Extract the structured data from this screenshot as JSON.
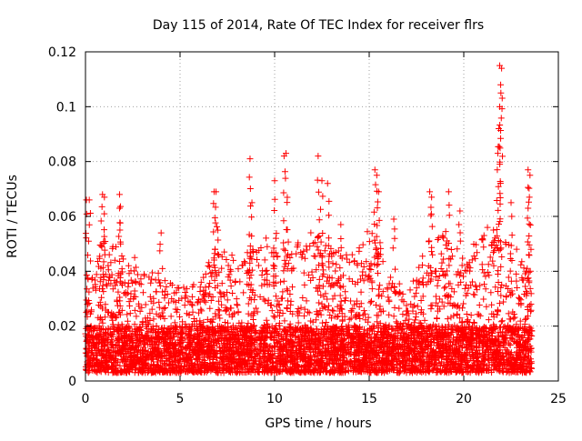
{
  "chart_data": {
    "type": "scatter",
    "title": "Day 115 of 2014, Rate Of TEC Index for receiver flrs",
    "xlabel": "GPS time / hours",
    "ylabel": "ROTI / TECUs",
    "xlim": [
      0,
      25
    ],
    "ylim": [
      0,
      0.12
    ],
    "xticks": [
      0,
      5,
      10,
      15,
      20,
      25
    ],
    "yticks": [
      0,
      0.02,
      0.04,
      0.06,
      0.08,
      0.1,
      0.12
    ],
    "xtick_labels": [
      "0",
      "5",
      "10",
      "15",
      "20",
      "25"
    ],
    "ytick_labels": [
      "0",
      "0.02",
      "0.04",
      "0.06",
      "0.08",
      "0.1",
      "0.12"
    ],
    "grid": true,
    "marker": "+",
    "marker_color": "#ff0000",
    "series": [
      {
        "name": "ROTI",
        "peaks": [
          {
            "x": 0.05,
            "y": 0.066
          },
          {
            "x": 0.2,
            "y": 0.066
          },
          {
            "x": 0.9,
            "y": 0.068
          },
          {
            "x": 1.0,
            "y": 0.067
          },
          {
            "x": 1.8,
            "y": 0.068
          },
          {
            "x": 1.8,
            "y": 0.063
          },
          {
            "x": 2.6,
            "y": 0.045
          },
          {
            "x": 4.0,
            "y": 0.054
          },
          {
            "x": 6.8,
            "y": 0.069
          },
          {
            "x": 6.9,
            "y": 0.069
          },
          {
            "x": 7.0,
            "y": 0.055
          },
          {
            "x": 8.7,
            "y": 0.081
          },
          {
            "x": 8.8,
            "y": 0.065
          },
          {
            "x": 10.0,
            "y": 0.073
          },
          {
            "x": 10.5,
            "y": 0.082
          },
          {
            "x": 10.6,
            "y": 0.083
          },
          {
            "x": 12.3,
            "y": 0.082
          },
          {
            "x": 12.5,
            "y": 0.073
          },
          {
            "x": 12.8,
            "y": 0.072
          },
          {
            "x": 13.5,
            "y": 0.057
          },
          {
            "x": 15.3,
            "y": 0.077
          },
          {
            "x": 15.4,
            "y": 0.075
          },
          {
            "x": 15.5,
            "y": 0.069
          },
          {
            "x": 16.3,
            "y": 0.059
          },
          {
            "x": 18.2,
            "y": 0.069
          },
          {
            "x": 18.3,
            "y": 0.067
          },
          {
            "x": 19.2,
            "y": 0.069
          },
          {
            "x": 19.8,
            "y": 0.062
          },
          {
            "x": 21.9,
            "y": 0.115
          },
          {
            "x": 22.0,
            "y": 0.114
          },
          {
            "x": 21.95,
            "y": 0.108
          },
          {
            "x": 21.9,
            "y": 0.1
          },
          {
            "x": 21.85,
            "y": 0.092
          },
          {
            "x": 21.8,
            "y": 0.083
          },
          {
            "x": 22.5,
            "y": 0.065
          },
          {
            "x": 23.4,
            "y": 0.077
          },
          {
            "x": 23.5,
            "y": 0.075
          },
          {
            "x": 23.4,
            "y": 0.063
          }
        ],
        "envelope_hours": [
          0,
          1,
          2,
          3,
          4,
          5,
          6,
          7,
          8,
          9,
          10,
          11,
          12,
          13,
          14,
          15,
          16,
          17,
          18,
          19,
          20,
          21,
          22,
          23,
          23.6
        ],
        "envelope_upper": [
          0.036,
          0.055,
          0.045,
          0.04,
          0.04,
          0.034,
          0.036,
          0.052,
          0.045,
          0.052,
          0.055,
          0.05,
          0.055,
          0.05,
          0.045,
          0.058,
          0.045,
          0.03,
          0.05,
          0.055,
          0.045,
          0.055,
          0.06,
          0.045,
          0.04
        ],
        "baseline_range": [
          0.003,
          0.02
        ]
      }
    ]
  }
}
